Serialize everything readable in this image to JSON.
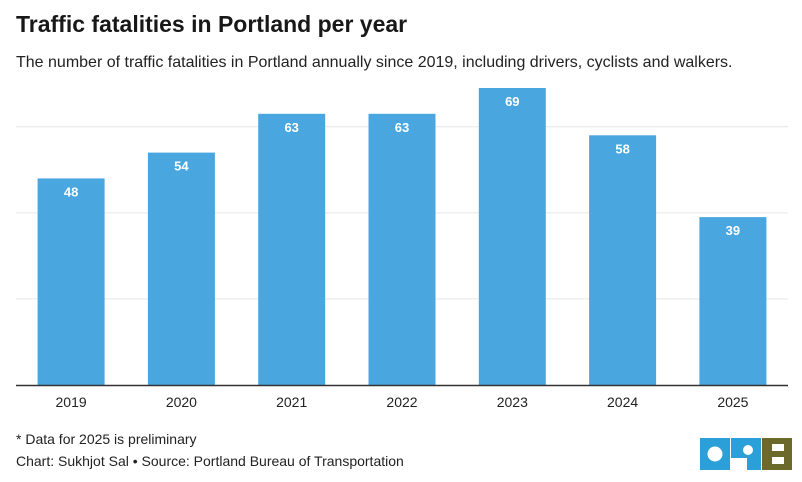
{
  "header": {
    "title": "Traffic fatalities in Portland per year",
    "subtitle": "The number of traffic fatalities in Portland annually since 2019, including drivers, cyclists and walkers."
  },
  "footer": {
    "note": "* Data for 2025 is preliminary",
    "chart_credit": "Chart: Sukhjot Sal",
    "separator": " • ",
    "source": "Source: Portland Bureau of Transportation",
    "logo_text": "OPB"
  },
  "colors": {
    "bar": "#4aa6df",
    "grid": "#e6e6e6",
    "axis": "#333333",
    "logo_blue": "#2a9fd8",
    "logo_olive": "#6b6a2a"
  },
  "chart_data": {
    "type": "bar",
    "categories": [
      "2019",
      "2020",
      "2021",
      "2022",
      "2023",
      "2024",
      "2025"
    ],
    "values": [
      48,
      54,
      63,
      63,
      69,
      58,
      39
    ],
    "title": "Traffic fatalities in Portland per year",
    "xlabel": "",
    "ylabel": "",
    "ylim": [
      0,
      70
    ],
    "grid": true,
    "data_labels": true
  }
}
